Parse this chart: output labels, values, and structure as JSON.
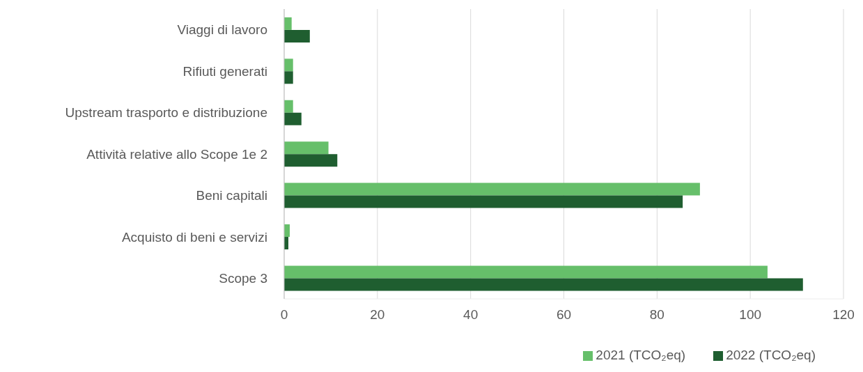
{
  "chart_data": {
    "type": "bar",
    "orientation": "horizontal",
    "categories": [
      "Viaggi di lavoro",
      "Rifiuti generati",
      "Upstream trasporto e distribuzione ",
      "Attività relative allo Scope 1e 2",
      "Beni capitali",
      "Acquisto di beni e servizi",
      "Scope 3"
    ],
    "series": [
      {
        "name": "2021 (TCO₂eq)",
        "color": "#66bf6a",
        "values": [
          1.6,
          1.9,
          1.9,
          9.5,
          89.2,
          1.2,
          103.7
        ]
      },
      {
        "name": "2022 (TCO₂eq)",
        "color": "#1f5e30",
        "values": [
          5.5,
          1.9,
          3.7,
          11.4,
          85.5,
          0.9,
          111.3
        ]
      }
    ],
    "xlim": [
      0,
      120
    ],
    "xticks": [
      0,
      20,
      40,
      60,
      80,
      100,
      120
    ],
    "grid": "x",
    "legend": "bottom right"
  }
}
